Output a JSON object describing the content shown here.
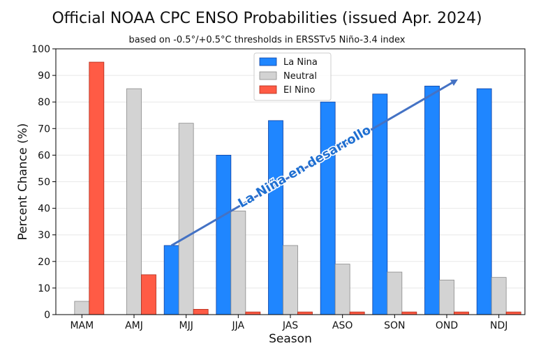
{
  "chart_data": {
    "type": "bar",
    "title": "Official NOAA CPC ENSO Probabilities (issued Apr. 2024)",
    "subtitle": "based on -0.5°/+0.5°C thresholds in ERSSTv5 Niño-3.4 index",
    "xlabel": "Season",
    "ylabel": "Percent Chance (%)",
    "ylim": [
      0,
      100
    ],
    "yticks": [
      0,
      10,
      20,
      30,
      40,
      50,
      60,
      70,
      80,
      90,
      100
    ],
    "grid": true,
    "legend_position": "top-center",
    "categories": [
      "MAM",
      "AMJ",
      "MJJ",
      "JJA",
      "JAS",
      "ASO",
      "SON",
      "OND",
      "NDJ"
    ],
    "series": [
      {
        "name": "La Nina",
        "color": "#1f86ff",
        "values": [
          0,
          0,
          26,
          60,
          73,
          80,
          83,
          86,
          85
        ]
      },
      {
        "name": "Neutral",
        "color": "#d3d3d3",
        "values": [
          5,
          85,
          72,
          39,
          26,
          19,
          16,
          13,
          14
        ]
      },
      {
        "name": "El Nino",
        "color": "#ff5b45",
        "values": [
          95,
          15,
          2,
          1,
          1,
          1,
          1,
          1,
          1
        ]
      }
    ],
    "annotation": {
      "text": "La Niña en desarrollo",
      "color": "#1f6fd1",
      "arrow_from": {
        "category": "MJJ",
        "value": 26
      },
      "arrow_to": {
        "category": "OND",
        "value": 88
      }
    }
  }
}
